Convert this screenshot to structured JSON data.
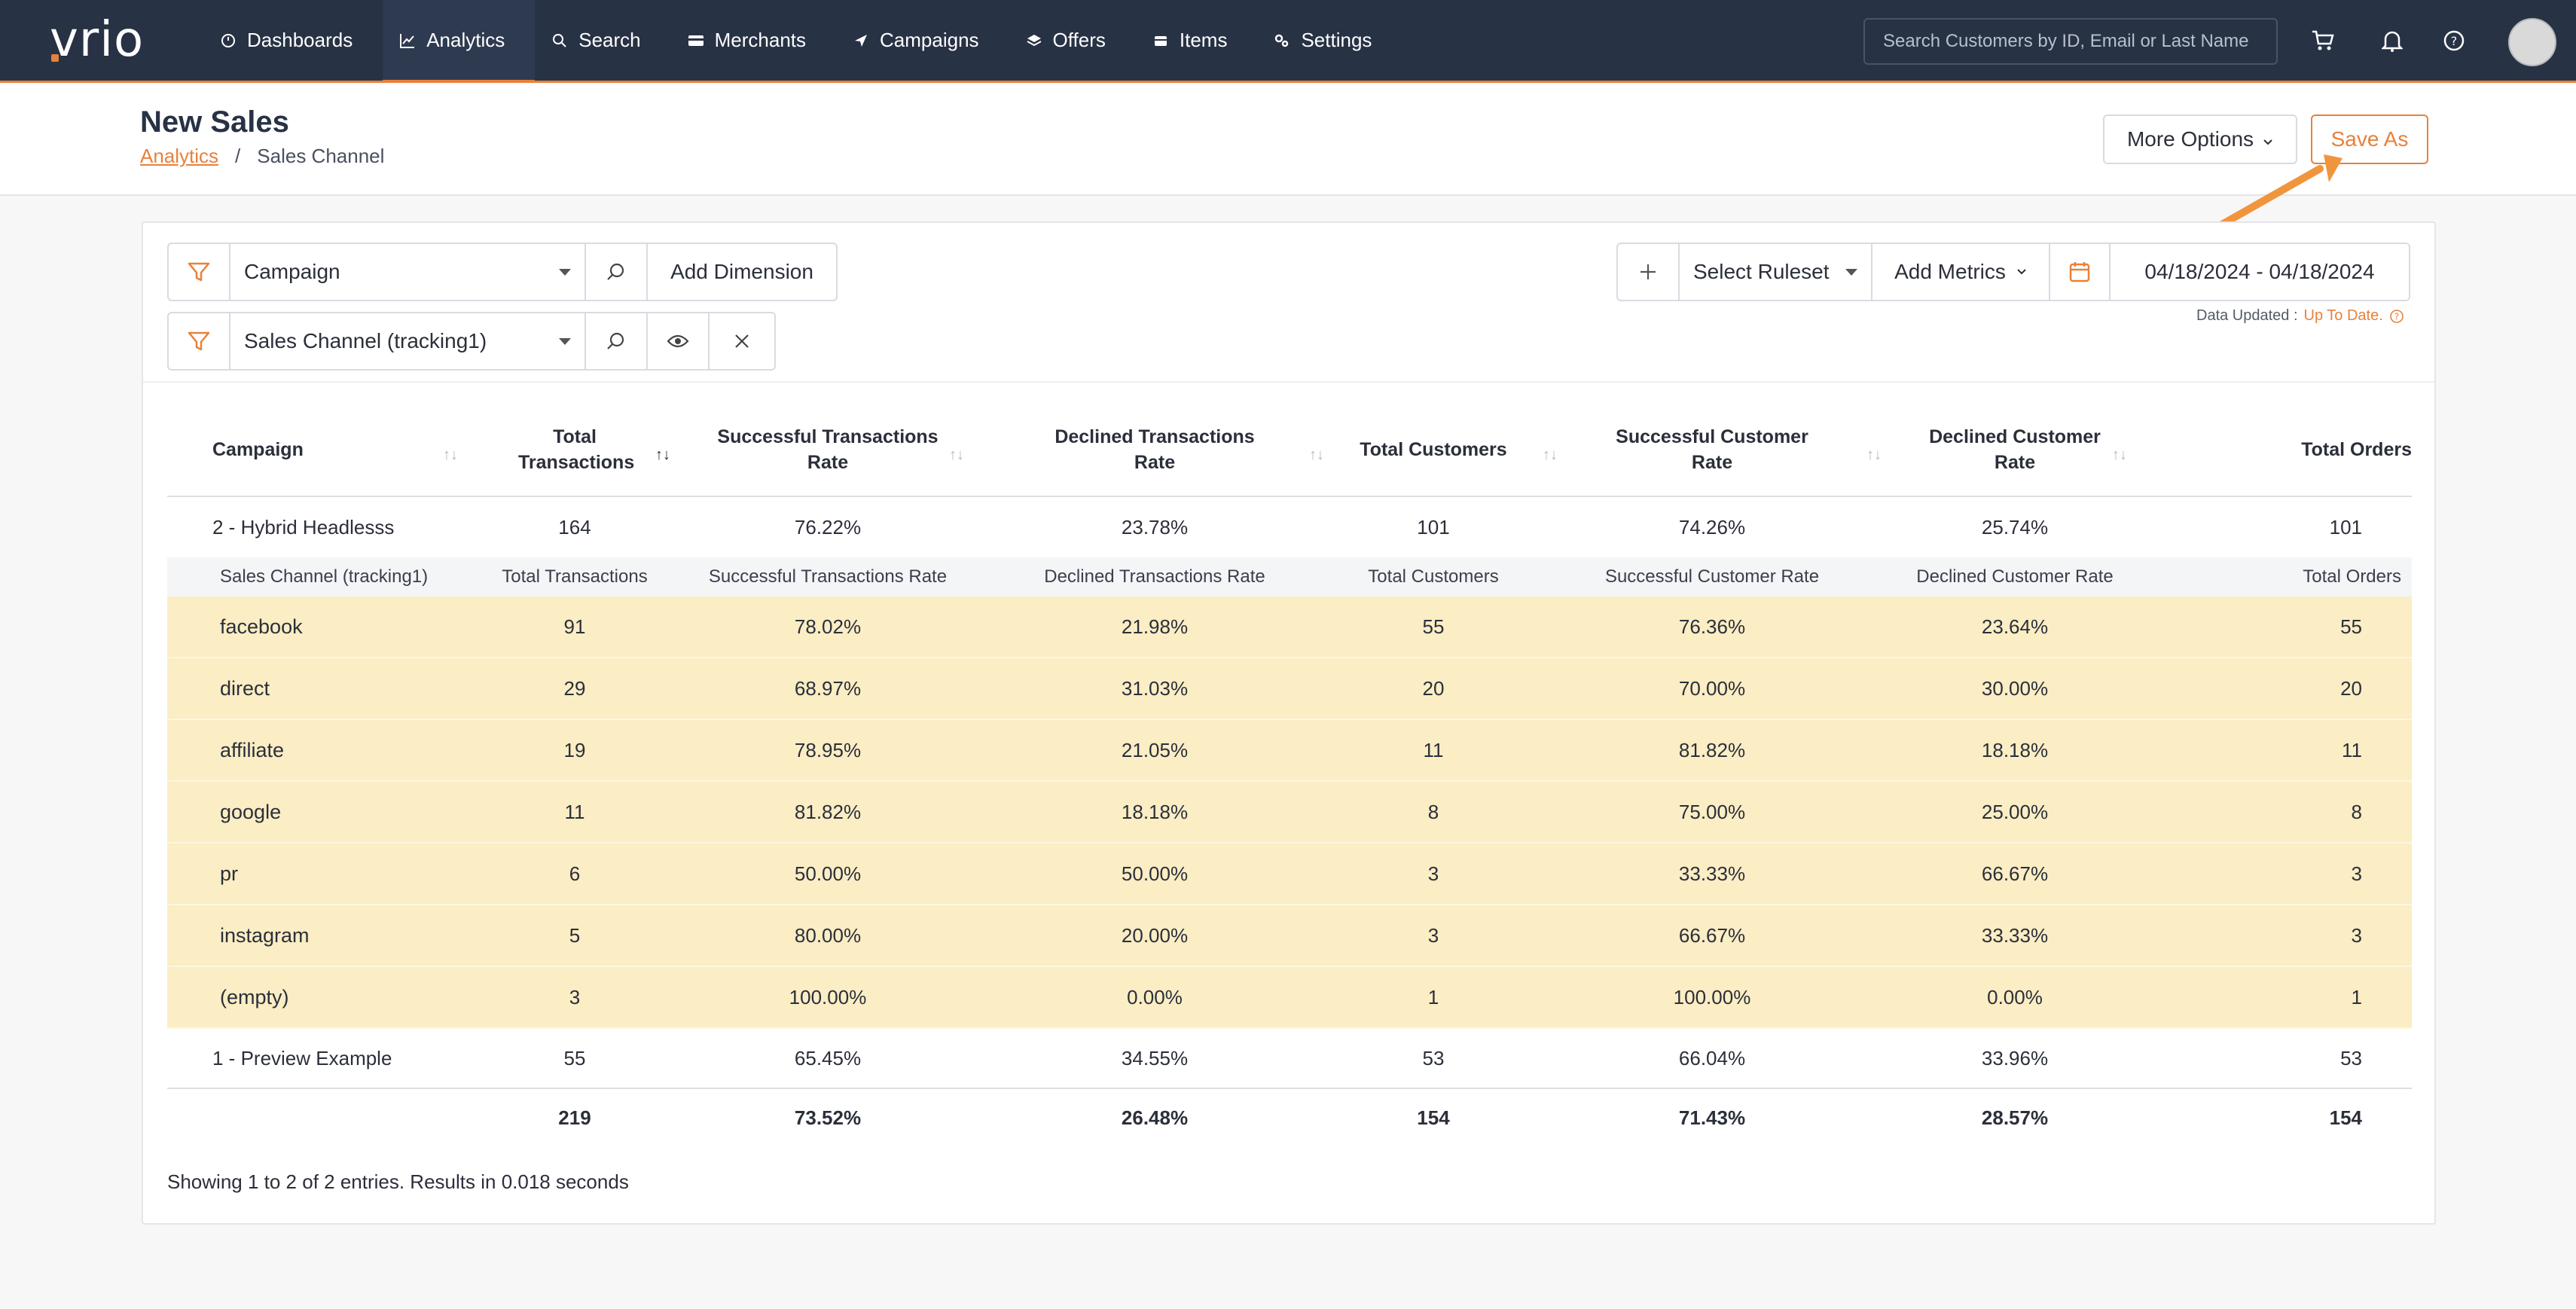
{
  "app": {
    "logo": "vrio"
  },
  "nav": {
    "items": [
      {
        "label": "Dashboards",
        "icon": "gauge-icon"
      },
      {
        "label": "Analytics",
        "icon": "chart-line-icon",
        "active": true
      },
      {
        "label": "Search",
        "icon": "search-icon"
      },
      {
        "label": "Merchants",
        "icon": "card-icon"
      },
      {
        "label": "Campaigns",
        "icon": "send-icon"
      },
      {
        "label": "Offers",
        "icon": "layers-icon"
      },
      {
        "label": "Items",
        "icon": "box-icon"
      },
      {
        "label": "Settings",
        "icon": "gears-icon"
      }
    ],
    "search_placeholder": "Search Customers by ID, Email or Last Name"
  },
  "header": {
    "title": "New Sales",
    "breadcrumb_link": "Analytics",
    "breadcrumb_sep": "/",
    "breadcrumb_current": "Sales Channel",
    "more_options": "More Options",
    "save_as": "Save As"
  },
  "filters": {
    "dimension1": "Campaign",
    "add_dimension": "Add Dimension",
    "dimension2": "Sales Channel (tracking1)",
    "select_ruleset": "Select Ruleset",
    "add_metrics": "Add Metrics",
    "date_range": "04/18/2024 - 04/18/2024",
    "data_updated_label": "Data Updated :",
    "data_updated_value": "Up To Date."
  },
  "table": {
    "headers": [
      "Campaign",
      "Total Transactions",
      "Successful Transactions Rate",
      "Declined Transactions Rate",
      "Total Customers",
      "Successful Customer Rate",
      "Declined Customer Rate",
      "Total Orders"
    ],
    "rows": [
      {
        "cells": [
          "2 - Hybrid Headlesss",
          "164",
          "76.22%",
          "23.78%",
          "101",
          "74.26%",
          "25.74%",
          "101"
        ]
      },
      {
        "cells": [
          "1 - Preview Example",
          "55",
          "65.45%",
          "34.55%",
          "53",
          "66.04%",
          "33.96%",
          "53"
        ]
      }
    ],
    "sub_headers": [
      "Sales Channel (tracking1)",
      "Total Transactions",
      "Successful Transactions Rate",
      "Declined Transactions Rate",
      "Total Customers",
      "Successful Customer Rate",
      "Declined Customer Rate",
      "Total Orders"
    ],
    "sub_rows": [
      [
        "facebook",
        "91",
        "78.02%",
        "21.98%",
        "55",
        "76.36%",
        "23.64%",
        "55"
      ],
      [
        "direct",
        "29",
        "68.97%",
        "31.03%",
        "20",
        "70.00%",
        "30.00%",
        "20"
      ],
      [
        "affiliate",
        "19",
        "78.95%",
        "21.05%",
        "11",
        "81.82%",
        "18.18%",
        "11"
      ],
      [
        "google",
        "11",
        "81.82%",
        "18.18%",
        "8",
        "75.00%",
        "25.00%",
        "8"
      ],
      [
        "pr",
        "6",
        "50.00%",
        "50.00%",
        "3",
        "33.33%",
        "66.67%",
        "3"
      ],
      [
        "instagram",
        "5",
        "80.00%",
        "20.00%",
        "3",
        "66.67%",
        "33.33%",
        "3"
      ],
      [
        "(empty)",
        "3",
        "100.00%",
        "0.00%",
        "1",
        "100.00%",
        "0.00%",
        "1"
      ]
    ],
    "totals": [
      "",
      "219",
      "73.52%",
      "26.48%",
      "154",
      "71.43%",
      "28.57%",
      "154"
    ],
    "footer": "Showing 1 to 2 of 2 entries. Results in 0.018 seconds"
  },
  "colors": {
    "accent": "#e8813a",
    "nav_bg": "#283245",
    "highlight_row": "#fbedc4"
  }
}
